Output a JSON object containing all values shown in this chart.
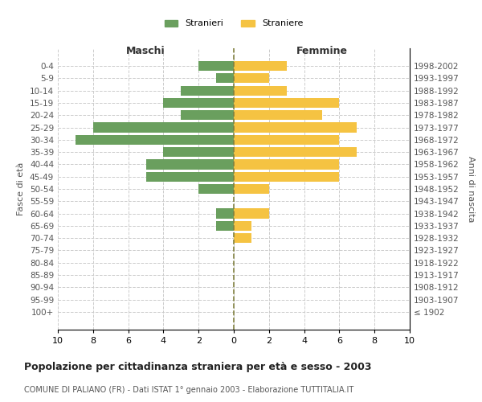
{
  "age_groups": [
    "100+",
    "95-99",
    "90-94",
    "85-89",
    "80-84",
    "75-79",
    "70-74",
    "65-69",
    "60-64",
    "55-59",
    "50-54",
    "45-49",
    "40-44",
    "35-39",
    "30-34",
    "25-29",
    "20-24",
    "15-19",
    "10-14",
    "5-9",
    "0-4"
  ],
  "birth_years": [
    "≤ 1902",
    "1903-1907",
    "1908-1912",
    "1913-1917",
    "1918-1922",
    "1923-1927",
    "1928-1932",
    "1933-1937",
    "1938-1942",
    "1943-1947",
    "1948-1952",
    "1953-1957",
    "1958-1962",
    "1963-1967",
    "1968-1972",
    "1973-1977",
    "1978-1982",
    "1983-1987",
    "1988-1992",
    "1993-1997",
    "1998-2002"
  ],
  "males": [
    0,
    0,
    0,
    0,
    0,
    0,
    0,
    1,
    1,
    0,
    2,
    5,
    5,
    4,
    9,
    8,
    3,
    4,
    3,
    1,
    2
  ],
  "females": [
    0,
    0,
    0,
    0,
    0,
    0,
    1,
    1,
    2,
    0,
    2,
    6,
    6,
    7,
    6,
    7,
    5,
    6,
    3,
    2,
    3
  ],
  "male_color": "#6a9f5e",
  "female_color": "#f5c342",
  "center_line_color": "#808040",
  "background_color": "#ffffff",
  "grid_color": "#cccccc",
  "title": "Popolazione per cittadinanza straniera per età e sesso - 2003",
  "subtitle": "COMUNE DI PALIANO (FR) - Dati ISTAT 1° gennaio 2003 - Elaborazione TUTTITALIA.IT",
  "xlabel_left": "Maschi",
  "xlabel_right": "Femmine",
  "ylabel_left": "Fasce di età",
  "ylabel_right": "Anni di nascita",
  "legend_male": "Stranieri",
  "legend_female": "Straniere",
  "xlim": 10,
  "bar_height": 0.8
}
